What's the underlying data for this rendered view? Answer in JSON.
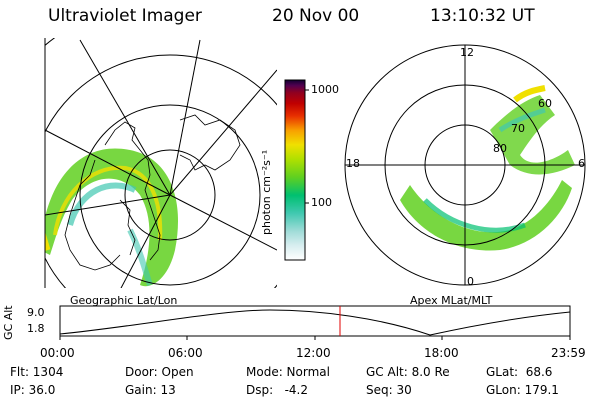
{
  "header": {
    "instrument": "Ultraviolet Imager",
    "date": "20 Nov 00",
    "time": "13:10:32 UT"
  },
  "geo_panel": {
    "label": "Geographic Lat/Lon"
  },
  "colorbar": {
    "unit_label": "photon cm⁻²s⁻¹",
    "tick_1000": "1000",
    "tick_100": "100",
    "colors": [
      "#ffffff",
      "#d8eef0",
      "#a0dcd8",
      "#40c8b0",
      "#00c070",
      "#60d020",
      "#b0e000",
      "#f0e000",
      "#f8a000",
      "#e83000",
      "#c00000",
      "#900020",
      "#500050",
      "#100030"
    ]
  },
  "polar_panel": {
    "label": "Apex MLat/MLT",
    "mlt_12": "12",
    "mlt_18": "18",
    "mlt_0": "0",
    "mlt_6": "6",
    "lat_60": "60",
    "lat_70": "70",
    "lat_80": "80"
  },
  "altitude_plot": {
    "ylabel": "GC Alt",
    "y_top": "9.0",
    "y_bottom": "1.8",
    "x_ticks": [
      "00:00",
      "06:00",
      "12:00",
      "18:00",
      "23:59"
    ],
    "current_time_marker_color": "#e00000"
  },
  "info": {
    "flt": "Flt: 1304",
    "ip": "IP: 36.0",
    "door": "Door: Open",
    "gain": "Gain: 13",
    "mode": "Mode: Normal",
    "dsp": "Dsp:   -4.2",
    "gcalt": "GC Alt: 8.0 Re",
    "seq": "Seq: 30",
    "glat": "GLat:  68.6",
    "glon": "GLon: 179.1"
  }
}
